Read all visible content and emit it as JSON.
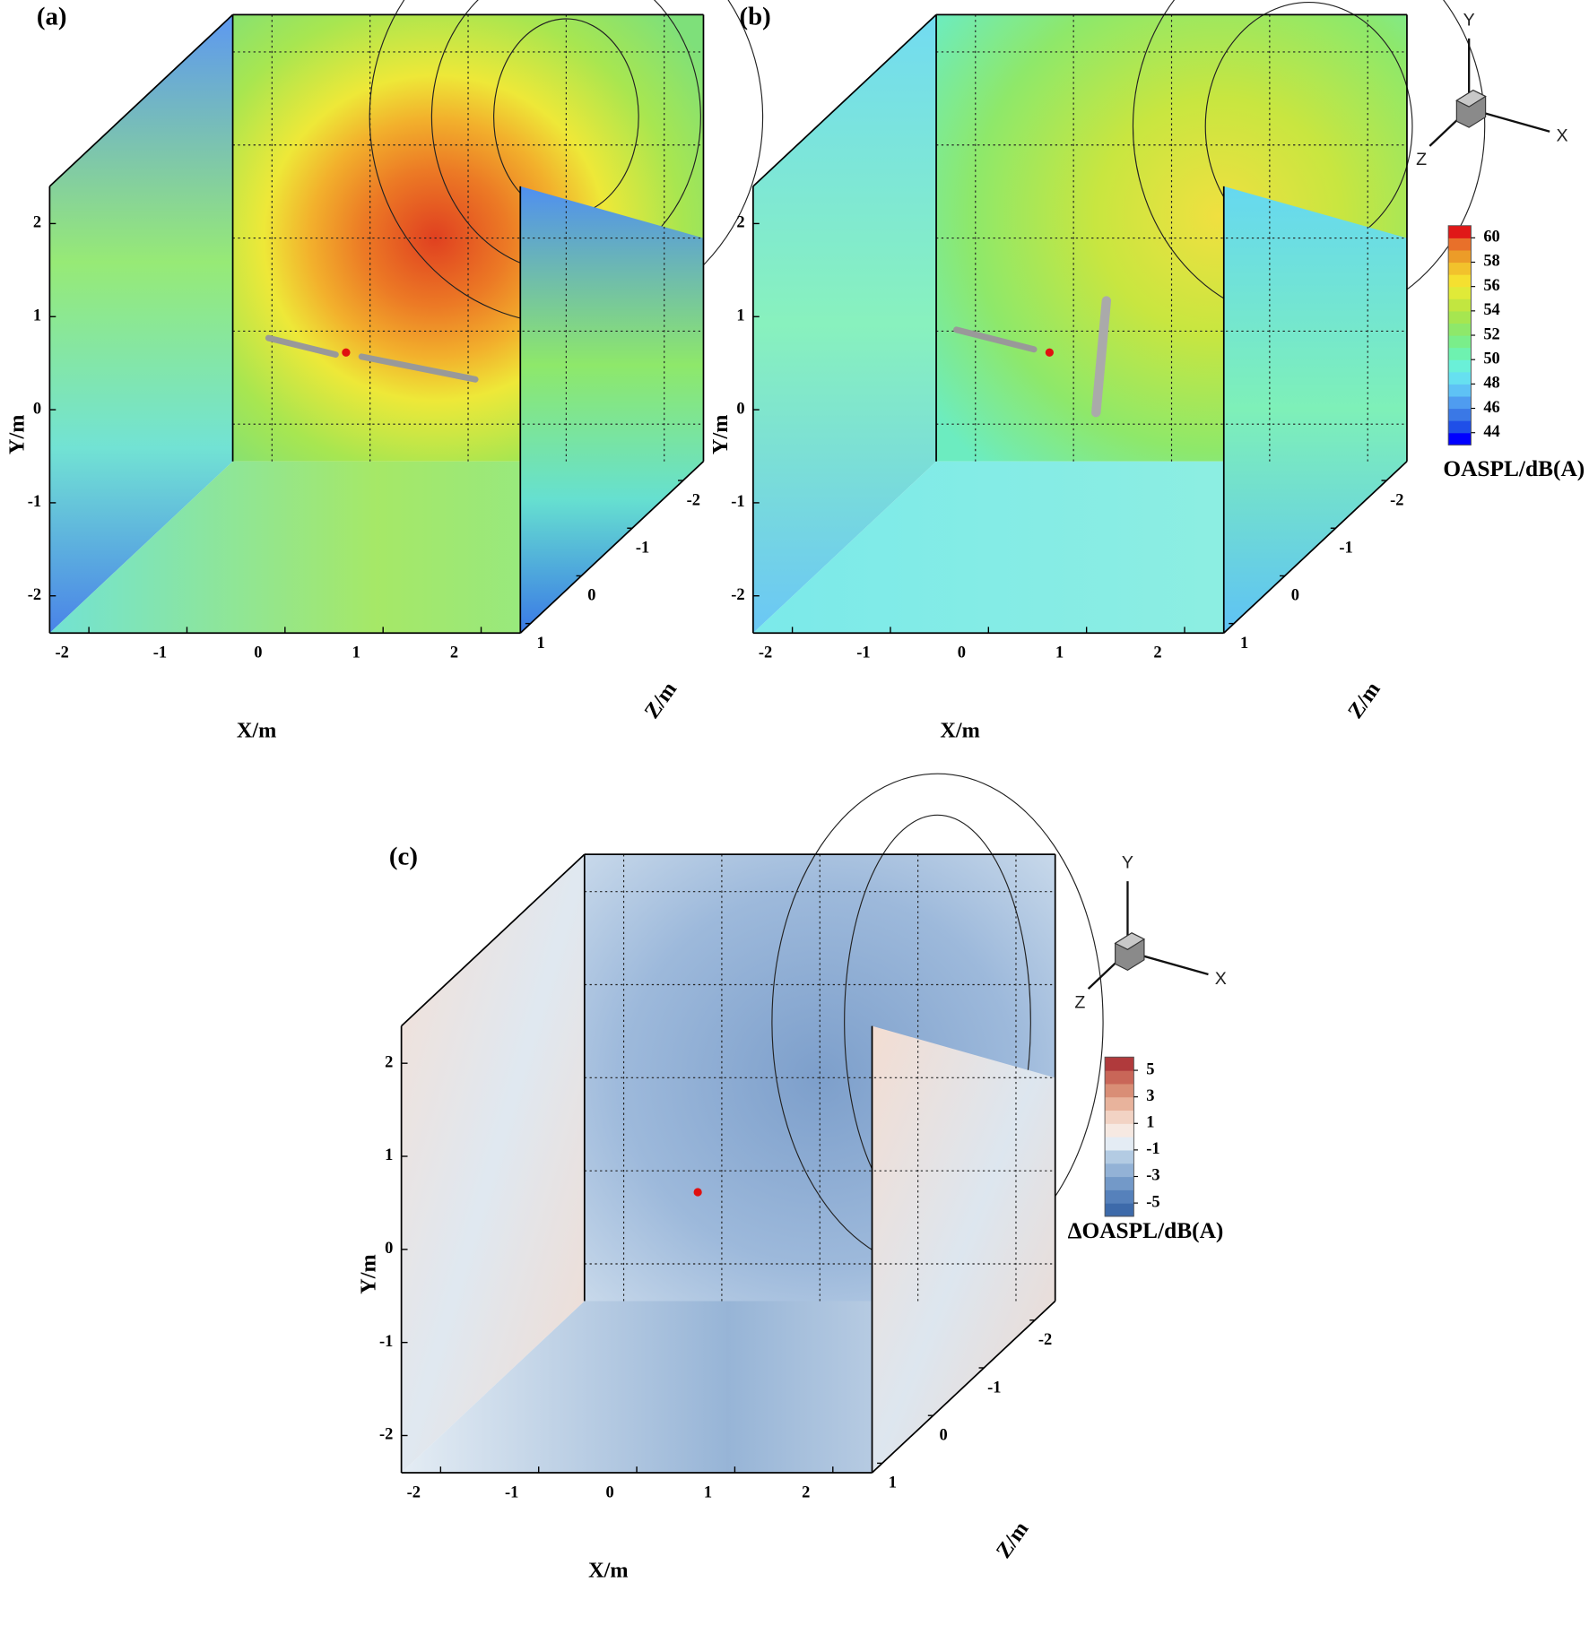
{
  "chart_data": [
    {
      "type": "contour3d",
      "label": "(a)",
      "xlabel": "X/m",
      "ylabel": "Y/m",
      "zlabel": "Z/m",
      "xlim": [
        -2.4,
        2.4
      ],
      "ylim": [
        -2.4,
        2.4
      ],
      "zlim": [
        1.2,
        -2.4
      ],
      "xticks": [
        -2,
        -1,
        0,
        1,
        2
      ],
      "yticks": [
        2,
        1,
        0,
        -1,
        -2
      ],
      "zticks": [
        -2,
        -1,
        0,
        1
      ]
    },
    {
      "type": "contour3d",
      "label": "(b)",
      "xlabel": "X/m",
      "ylabel": "Y/m",
      "zlabel": "Z/m",
      "xlim": [
        -2.4,
        2.4
      ],
      "ylim": [
        -2.4,
        2.4
      ],
      "zlim": [
        1.2,
        -2.4
      ],
      "xticks": [
        -2,
        -1,
        0,
        1,
        2
      ],
      "yticks": [
        2,
        1,
        0,
        -1,
        -2
      ],
      "zticks": [
        -2,
        -1,
        0,
        1
      ],
      "triad": [
        "X",
        "Y",
        "Z"
      ],
      "colorbar": {
        "title": "OASPL/dB(A)",
        "lim": [
          43,
          61
        ],
        "ticks": [
          60,
          58,
          56,
          54,
          52,
          50,
          48,
          46,
          44
        ],
        "colors": [
          "#0000ff",
          "#1f4fe8",
          "#3a78e6",
          "#4f9cf0",
          "#5ec2f5",
          "#66e0f0",
          "#6af0d8",
          "#6ef2b0",
          "#7aee8a",
          "#8ee86a",
          "#a6e650",
          "#c2e640",
          "#e0ea38",
          "#f5e030",
          "#f2c22c",
          "#ec9c28",
          "#e8702a",
          "#e01818"
        ]
      }
    },
    {
      "type": "contour3d",
      "label": "(c)",
      "xlabel": "X/m",
      "ylabel": "Y/m",
      "zlabel": "Z/m",
      "xlim": [
        -2.4,
        2.4
      ],
      "ylim": [
        -2.4,
        2.4
      ],
      "zlim": [
        1.2,
        -2.4
      ],
      "xticks": [
        -2,
        -1,
        0,
        1,
        2
      ],
      "yticks": [
        2,
        1,
        0,
        -1,
        -2
      ],
      "zticks": [
        -2,
        -1,
        0,
        1
      ],
      "triad": [
        "X",
        "Y",
        "Z"
      ],
      "colorbar": {
        "title": "ΔOASPL/dB(A)",
        "lim": [
          -6,
          6
        ],
        "ticks": [
          5,
          3,
          1,
          -1,
          -3,
          -5
        ],
        "colors": [
          "#3d6aaa",
          "#5681bb",
          "#7399c8",
          "#93b2d6",
          "#b3cbe3",
          "#e4ecf4",
          "#f6e9e2",
          "#f2d3c4",
          "#e8b39c",
          "#d98e76",
          "#c96658",
          "#b03a3c"
        ]
      }
    }
  ]
}
